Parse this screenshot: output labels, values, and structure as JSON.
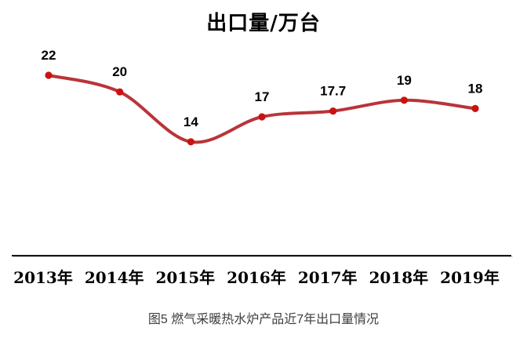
{
  "page": {
    "title": "出口量/万台",
    "caption": "图5 燃气采暖热水炉产品近7年出口量情况"
  },
  "chart_data": {
    "type": "line",
    "title": "出口量/万台",
    "categories": [
      "2013年",
      "2014年",
      "2015年",
      "2016年",
      "2017年",
      "2018年",
      "2019年"
    ],
    "series": [
      {
        "name": "出口量",
        "values": [
          22,
          20,
          14,
          17,
          17.7,
          19,
          18
        ]
      }
    ],
    "data_labels": [
      "22",
      "20",
      "14",
      "17",
      "17.7",
      "19",
      "18"
    ],
    "xlabel": "",
    "ylabel": "万台",
    "ylim": [
      12,
      24
    ],
    "grid": false,
    "legend_position": "none",
    "smooth": true,
    "line_color": "#b93439",
    "marker_color": "#cc1111",
    "label_color": "#000000",
    "axis_color": "#161616"
  }
}
